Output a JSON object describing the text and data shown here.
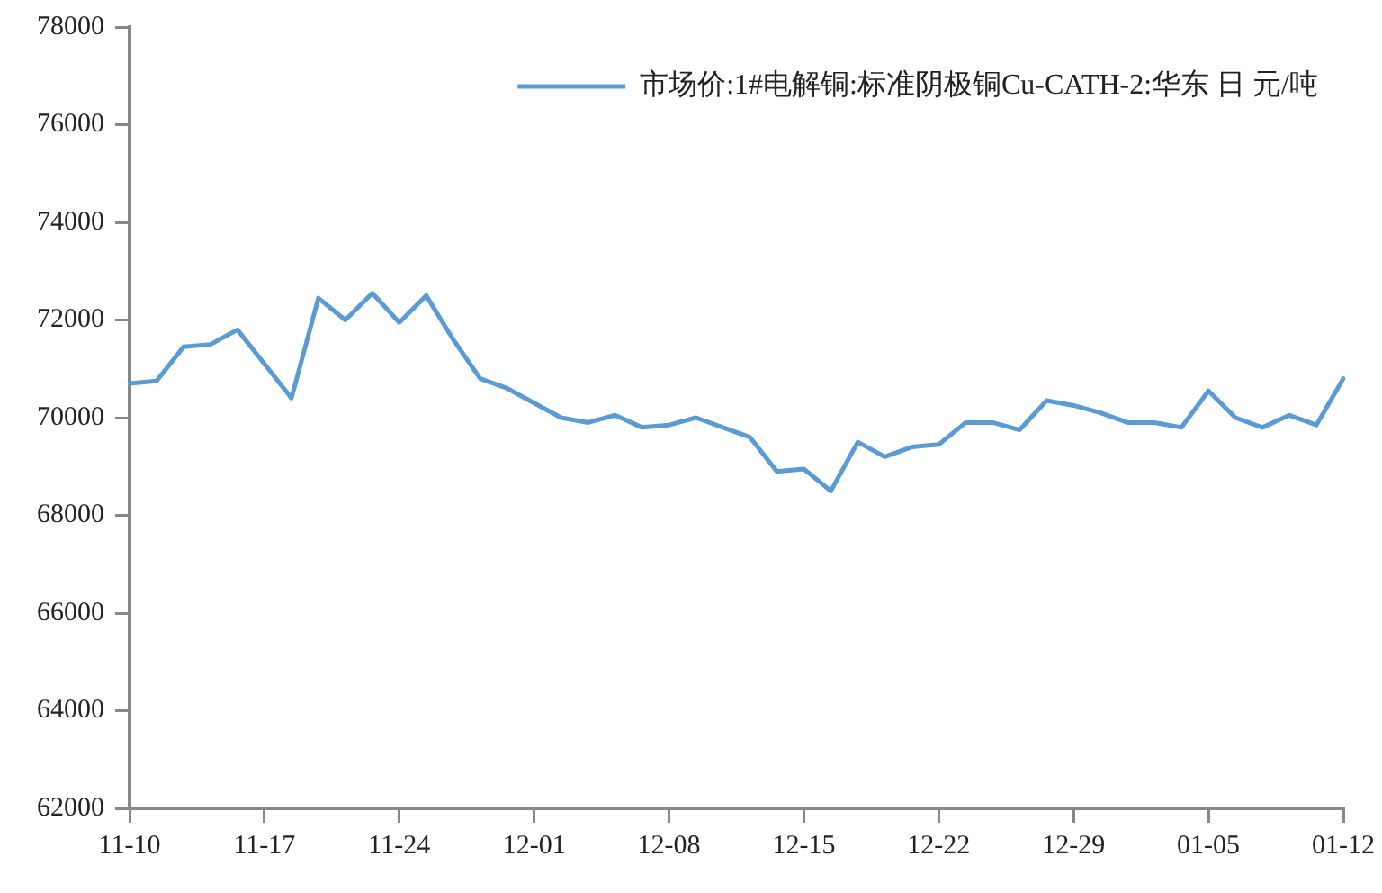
{
  "chart_data": {
    "type": "line",
    "categories": [
      "11-10",
      null,
      null,
      null,
      null,
      "11-17",
      null,
      null,
      null,
      null,
      "11-24",
      null,
      null,
      null,
      null,
      "12-01",
      null,
      null,
      null,
      null,
      "12-08",
      null,
      null,
      null,
      null,
      "12-15",
      null,
      null,
      null,
      null,
      "12-22",
      null,
      null,
      null,
      null,
      "12-29",
      null,
      null,
      null,
      null,
      "01-05",
      null,
      null,
      null,
      null,
      "01-12"
    ],
    "series": [
      {
        "name": "市场价:1#电解铜:标准阴极铜Cu-CATH-2:华东 日 元/吨",
        "color": "#5b9bd5",
        "values": [
          70700,
          70750,
          71450,
          71500,
          71800,
          71100,
          70400,
          72450,
          72000,
          72550,
          71950,
          72500,
          71600,
          70800,
          70600,
          70300,
          70000,
          69900,
          70050,
          69800,
          69850,
          70000,
          69800,
          69600,
          68900,
          68950,
          68500,
          69500,
          69200,
          69400,
          69450,
          69900,
          69900,
          69750,
          70350,
          70250,
          70100,
          69900,
          69900,
          69800,
          70550,
          70000,
          69800,
          70050,
          69850,
          70800
        ]
      }
    ],
    "ylim": [
      62000,
      78000
    ],
    "yticks": [
      62000,
      64000,
      66000,
      68000,
      70000,
      72000,
      74000,
      76000,
      78000
    ],
    "grid": false,
    "legend": "top right",
    "marker": "none",
    "line_style": "solid"
  }
}
